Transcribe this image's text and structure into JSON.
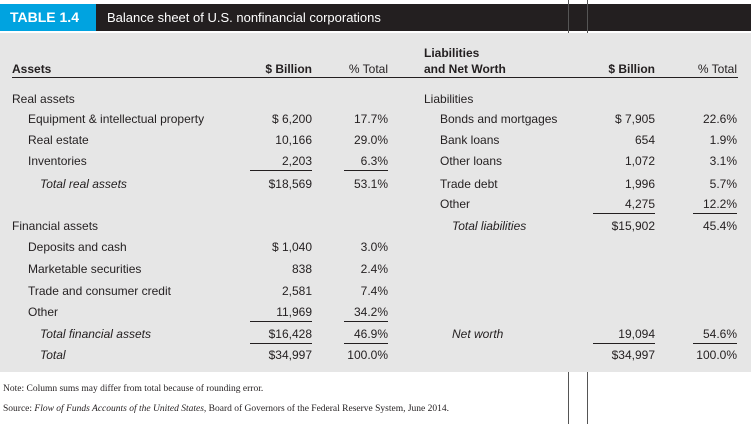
{
  "table": {
    "number": "TABLE 1.4",
    "title": "Balance sheet of U.S. nonfinancial corporations"
  },
  "columns": {
    "assets": "Assets",
    "billion_left": "$ Billion",
    "pct_left": "% Total",
    "liabilities_line1": "Liabilities",
    "liabilities_line2": "and Net Worth",
    "billion_right": "$ Billion",
    "pct_right": "% Total"
  },
  "assets_rows": [
    {
      "label": "Real assets",
      "style": "group"
    },
    {
      "label": "Equipment & intellectual property",
      "value": "$ 6,200",
      "pct": "17.7%",
      "style": "item"
    },
    {
      "label": "Real estate",
      "value": "10,166",
      "pct": "29.0%",
      "style": "item"
    },
    {
      "label": "Inventories",
      "value": "2,203",
      "pct": "6.3%",
      "style": "item",
      "underlined": true
    },
    {
      "label": "Total real assets",
      "value": "$18,569",
      "pct": "53.1%",
      "style": "total"
    },
    {
      "label": "Financial assets",
      "style": "group"
    },
    {
      "label": "Deposits and cash",
      "value": "$ 1,040",
      "pct": "3.0%",
      "style": "item"
    },
    {
      "label": "Marketable securities",
      "value": "838",
      "pct": "2.4%",
      "style": "item"
    },
    {
      "label": "Trade and consumer credit",
      "value": "2,581",
      "pct": "7.4%",
      "style": "item"
    },
    {
      "label": "Other",
      "value": "11,969",
      "pct": "34.2%",
      "style": "item",
      "underlined": true
    },
    {
      "label": "Total financial assets",
      "value": "$16,428",
      "pct": "46.9%",
      "style": "total",
      "underlined": true
    },
    {
      "label": "Total",
      "value": "$34,997",
      "pct": "100.0%",
      "style": "grand"
    }
  ],
  "liabilities_rows": [
    {
      "label": "Liabilities",
      "style": "group"
    },
    {
      "label": "Bonds and mortgages",
      "value": "$ 7,905",
      "pct": "22.6%",
      "style": "item"
    },
    {
      "label": "Bank loans",
      "value": "654",
      "pct": "1.9%",
      "style": "item"
    },
    {
      "label": "Other loans",
      "value": "1,072",
      "pct": "3.1%",
      "style": "item"
    },
    {
      "label": "Trade debt",
      "value": "1,996",
      "pct": "5.7%",
      "style": "item"
    },
    {
      "label": "Other",
      "value": "4,275",
      "pct": "12.2%",
      "style": "item",
      "underlined": true
    },
    {
      "label": "Total liabilities",
      "value": "$15,902",
      "pct": "45.4%",
      "style": "total"
    },
    {
      "label": "Net worth",
      "value": "19,094",
      "pct": "54.6%",
      "style": "total",
      "underlined": true
    },
    {
      "label": "",
      "value": "$34,997",
      "pct": "100.0%",
      "style": "grand"
    }
  ],
  "notes": {
    "note": "Note: Column sums may differ from total because of rounding error.",
    "source_prefix": "Source: ",
    "source_title": "Flow of Funds Accounts of the United States",
    "source_rest": ", Board of Governors of the Federal Reserve System, June 2014."
  },
  "colors": {
    "tag": "#00a3e0",
    "titlebar": "#231f20",
    "panel": "#e6e6e6"
  }
}
